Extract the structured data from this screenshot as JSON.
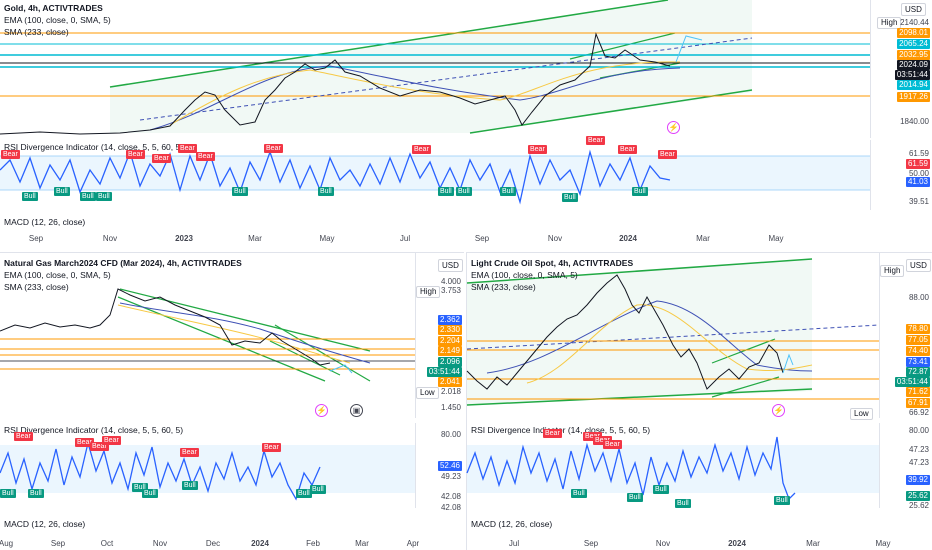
{
  "colors": {
    "up": "#089981",
    "down": "#f23645",
    "rsi": "#2962ff",
    "ema": "#f7c945",
    "sma": "#3f51b5",
    "channel": "#22a944",
    "hline": "#ff9800",
    "cyanline": "#00bcd4"
  },
  "panels": {
    "gold": {
      "title": "Gold, 4h, ACTIVTRADES",
      "ema": "EMA (100, close, 0, SMA, 5)",
      "sma": "SMA (233, close)",
      "currency": "USD",
      "high_label": "High",
      "price_ticks": [
        "2140.44",
        "2098.01",
        "2065.24",
        "2032.95",
        "2024.09",
        "03:51:44",
        "2014.94",
        "1917.26",
        "1840.00"
      ],
      "rsi_title": "RSI Divergence Indicator (14, close, 5, 5, 60, 5)",
      "rsi_ticks": [
        "61.59",
        "61.59",
        "50.00",
        "41.03",
        "39.51"
      ],
      "macd_title": "MACD (12, 26, close)",
      "x_labels": [
        "Sep",
        "Nov",
        "2023",
        "Mar",
        "May",
        "Jul",
        "Sep",
        "Nov",
        "2024",
        "Mar",
        "May"
      ]
    },
    "natgas": {
      "title": "Natural Gas March2024 CFD (Mar 2024), 4h, ACTIVTRADES",
      "ema": "EMA (100, close, 0, SMA, 5)",
      "sma": "SMA (233, close)",
      "currency": "USD",
      "high_label": "High",
      "high_value": "3.753",
      "low_label": "Low",
      "low_value": "2.018",
      "price_ticks": [
        "4.000",
        "2.362",
        "2.330",
        "2.204",
        "2.149",
        "2.096",
        "03:51:44",
        "2.041",
        "1.450"
      ],
      "rsi_title": "RSI Divergence Indicator (14, close, 5, 5, 60, 5)",
      "rsi_ticks": [
        "80.00",
        "52.46",
        "49.23",
        "42.08",
        "42.08"
      ],
      "macd_title": "MACD (12, 26, close)",
      "x_labels": [
        "Aug",
        "Sep",
        "Oct",
        "Nov",
        "Dec",
        "2024",
        "Feb",
        "Mar",
        "Apr"
      ]
    },
    "oil": {
      "title": "Light Crude Oil Spot, 4h, ACTIVTRADES",
      "ema": "EMA (100, close, 0, SMA, 5)",
      "sma": "SMA (233, close)",
      "currency": "USD",
      "high_label": "High",
      "low_label": "Low",
      "low_value": "66.92",
      "price_ticks": [
        "88.00",
        "78.80",
        "77.05",
        "74.40",
        "73.41",
        "72.87",
        "03:51:44",
        "71.62",
        "67.91"
      ],
      "rsi_title": "RSI Divergence Indicator (14, close, 5, 5, 60, 5)",
      "rsi_ticks": [
        "80.00",
        "47.23",
        "47.23",
        "39.92",
        "25.62",
        "25.62"
      ],
      "macd_title": "MACD (12, 26, close)",
      "x_labels": [
        "Jul",
        "Sep",
        "Nov",
        "2024",
        "Mar",
        "May"
      ]
    }
  },
  "markers": {
    "bear": "Bear",
    "bull": "Bull"
  }
}
